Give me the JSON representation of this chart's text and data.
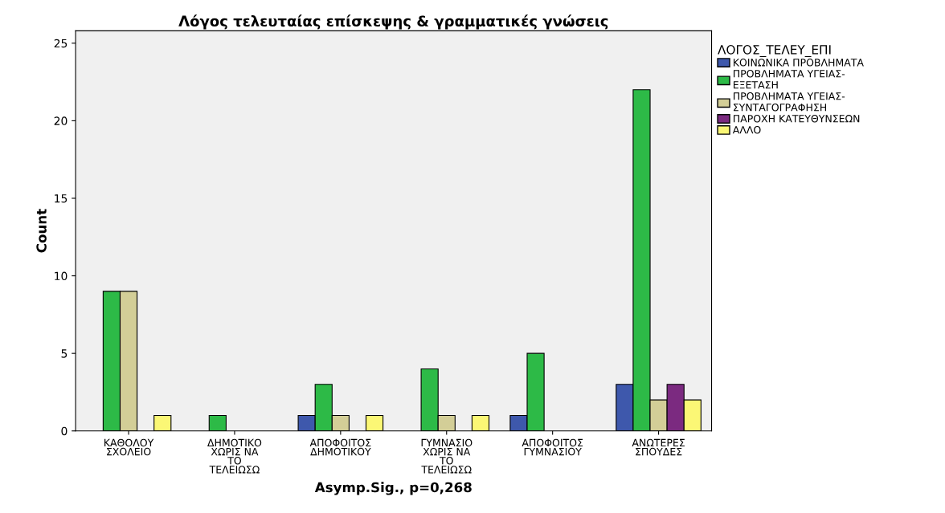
{
  "chart_data": {
    "type": "bar",
    "title": "Λόγος τελευταίας επίσκεψης & γραμματικές γνώσεις",
    "xlabel": "Asymp.Sig., p=0,268",
    "ylabel": "Count",
    "legend_title": "ΛΟΓΟΣ_ΤΕΛΕΥ_ΕΠΙ",
    "categories": [
      "ΚΑΘΟΛΟΥ\nΣΧΟΛΕΙΟ",
      "ΔΗΜΟΤΙΚΟ\nΧΩΡΙΣ ΝΑ\nΤΟ\nΤΕΛΕΙΩΣΩ",
      "ΑΠΟΦΟΙΤΟΣ\nΔΗΜΟΤΙΚΟΥ",
      "ΓΥΜΝΑΣΙΟ\nΧΩΡΙΣ ΝΑ\nΤΟ\nΤΕΛΕΙΩΣΩ",
      "ΑΠΟΦΟΙΤΟΣ\nΓΥΜΝΑΣΙΟΥ",
      "ΑΝΩΤΕΡΕΣ\nΣΠΟΥΔΕΣ"
    ],
    "series": [
      {
        "name": "ΚΟΙΝΩΝΙΚΑ ΠΡΟΒΛΗΜΑΤΑ",
        "color": "#3e58ac",
        "values": [
          null,
          null,
          1,
          null,
          1,
          3
        ]
      },
      {
        "name": "ΠΡΟΒΛΗΜΑΤΑ ΥΓΕΙΑΣ-\nΕΞΕΤΑΣΗ",
        "color": "#2dba47",
        "values": [
          9,
          1,
          3,
          4,
          5,
          22
        ]
      },
      {
        "name": "ΠΡΟΒΛΗΜΑΤΑ ΥΓΕΙΑΣ-\nΣΥΝΤΑΓΟΓΡΑΦΗΣΗ",
        "color": "#d3ce97",
        "values": [
          9,
          null,
          1,
          1,
          null,
          2
        ]
      },
      {
        "name": "ΠΑΡΟΧΗ ΚΑΤΕΥΘΥΝΣΕΩΝ",
        "color": "#7b2a80",
        "values": [
          null,
          null,
          null,
          null,
          null,
          3
        ]
      },
      {
        "name": "ΑΛΛΟ",
        "color": "#fbf775",
        "values": [
          1,
          null,
          1,
          1,
          null,
          2
        ]
      }
    ],
    "ylim": [
      0,
      25.8
    ],
    "yticks": [
      0,
      5,
      10,
      15,
      20,
      25
    ],
    "grid": false,
    "legend": "right"
  }
}
